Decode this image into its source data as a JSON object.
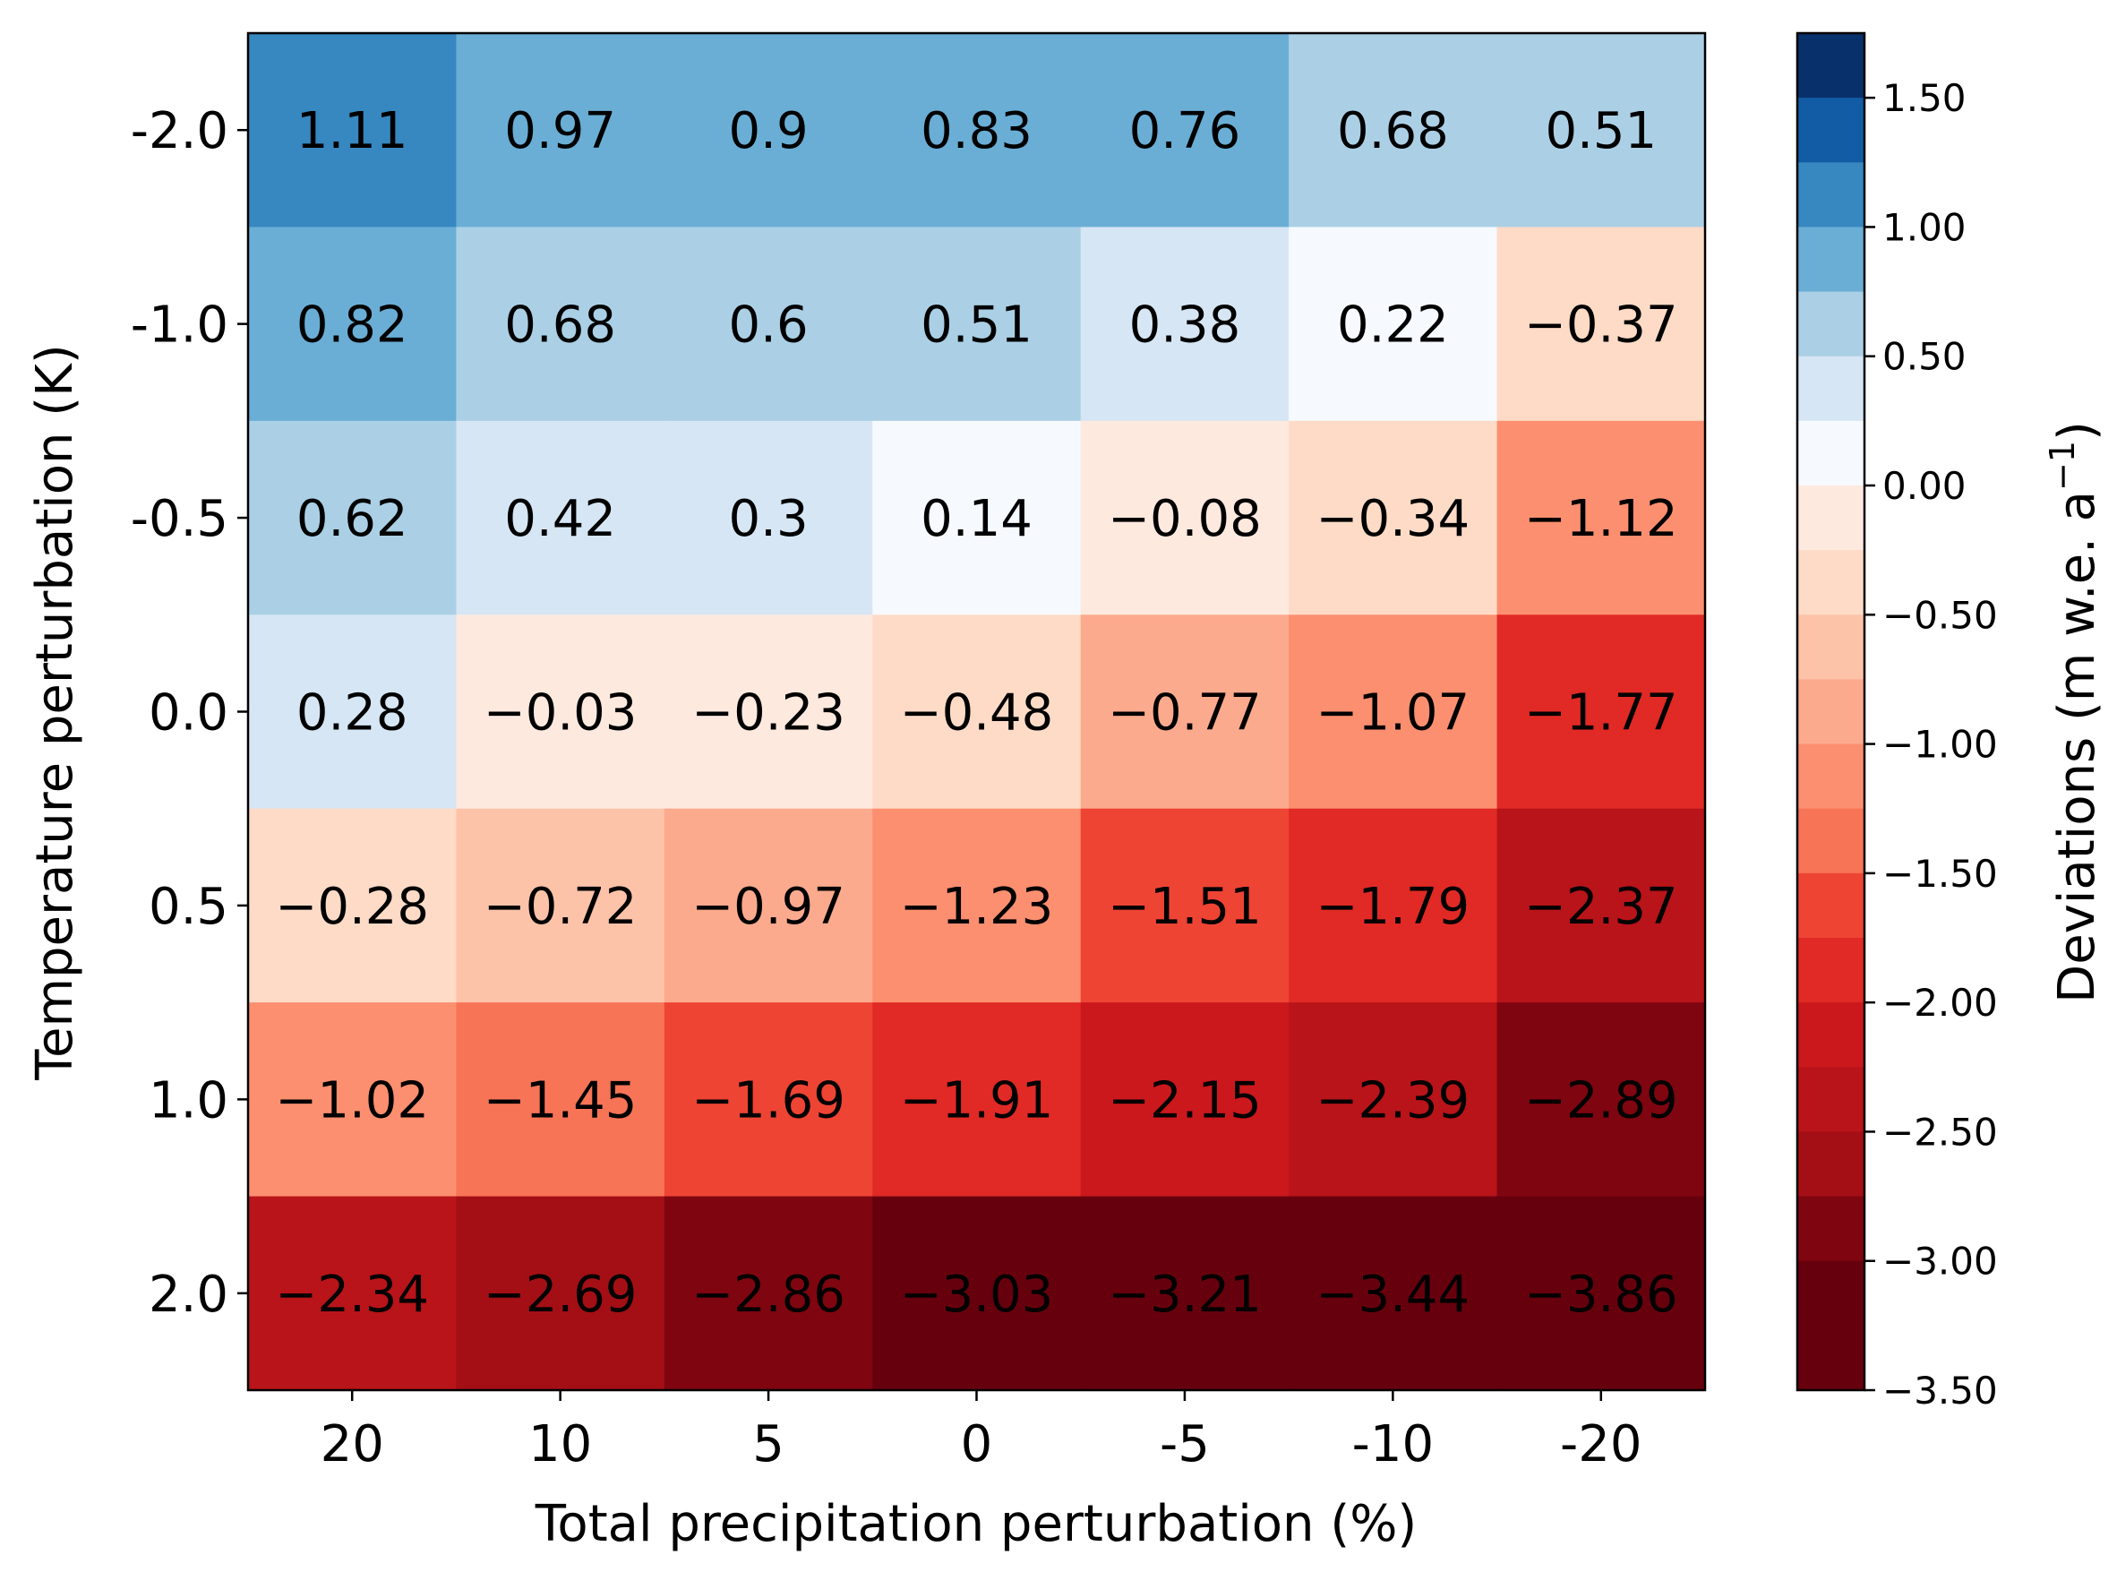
{
  "chart_data": {
    "type": "heatmap",
    "title": "",
    "xlabel": "Total precipitation perturbation (%)",
    "ylabel": "Temperature perturbation (K)",
    "x_categories": [
      "20",
      "10",
      "5",
      "0",
      "-5",
      "-10",
      "-20"
    ],
    "y_categories": [
      "-2.0",
      "-1.0",
      "-0.5",
      "0.0",
      "0.5",
      "1.0",
      "2.0"
    ],
    "values": [
      [
        1.11,
        0.97,
        0.9,
        0.83,
        0.76,
        0.68,
        0.51
      ],
      [
        0.82,
        0.68,
        0.6,
        0.51,
        0.38,
        0.22,
        -0.37
      ],
      [
        0.62,
        0.42,
        0.3,
        0.14,
        -0.08,
        -0.34,
        -1.12
      ],
      [
        0.28,
        -0.03,
        -0.23,
        -0.48,
        -0.77,
        -1.07,
        -1.77
      ],
      [
        -0.28,
        -0.72,
        -0.97,
        -1.23,
        -1.51,
        -1.79,
        -2.37
      ],
      [
        -1.02,
        -1.45,
        -1.69,
        -1.91,
        -2.15,
        -2.39,
        -2.89
      ],
      [
        -2.34,
        -2.69,
        -2.86,
        -3.03,
        -3.21,
        -3.44,
        -3.86
      ]
    ],
    "cell_labels": [
      [
        "1.11",
        "0.97",
        "0.9",
        "0.83",
        "0.76",
        "0.68",
        "0.51"
      ],
      [
        "0.82",
        "0.68",
        "0.6",
        "0.51",
        "0.38",
        "0.22",
        "−0.37"
      ],
      [
        "0.62",
        "0.42",
        "0.3",
        "0.14",
        "−0.08",
        "−0.34",
        "−1.12"
      ],
      [
        "0.28",
        "−0.03",
        "−0.23",
        "−0.48",
        "−0.77",
        "−1.07",
        "−1.77"
      ],
      [
        "−0.28",
        "−0.72",
        "−0.97",
        "−1.23",
        "−1.51",
        "−1.79",
        "−2.37"
      ],
      [
        "−1.02",
        "−1.45",
        "−1.69",
        "−1.91",
        "−2.15",
        "−2.39",
        "−2.89"
      ],
      [
        "−2.34",
        "−2.69",
        "−2.86",
        "−3.03",
        "−3.21",
        "−3.44",
        "−3.86"
      ]
    ],
    "colorbar": {
      "label_main": "Deviations (m w.e. a",
      "label_sup": "−1",
      "label_close": ")",
      "range": [
        -3.5,
        1.75
      ],
      "bin_size": 0.25,
      "tick_values": [
        1.5,
        1.0,
        0.5,
        0.0,
        -0.5,
        -1.0,
        -1.5,
        -2.0,
        -2.5,
        -3.0,
        -3.5
      ],
      "tick_labels": [
        "1.50",
        "1.00",
        "0.50",
        "0.00",
        "−0.50",
        "−1.00",
        "−1.50",
        "−2.00",
        "−2.50",
        "−3.00",
        "−3.50"
      ],
      "bin_colors": [
        "#08306b",
        "#115ca5",
        "#3787c0",
        "#6aaed6",
        "#abd0e6",
        "#d6e6f4",
        "#f6faff",
        "#fee9df",
        "#fddbc7",
        "#fcc3a9",
        "#fcaa8d",
        "#fc8f6f",
        "#f87457",
        "#ee4434",
        "#e12a25",
        "#cb181d",
        "#b81419",
        "#a30f15",
        "#7f0510",
        "#67000d",
        "#67000d"
      ]
    }
  }
}
